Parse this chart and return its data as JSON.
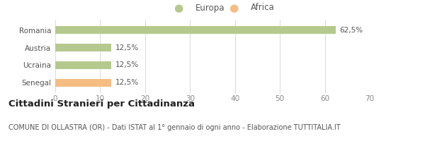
{
  "categories": [
    "Romania",
    "Austria",
    "Ucraina",
    "Senegal"
  ],
  "values": [
    62.5,
    12.5,
    12.5,
    12.5
  ],
  "bar_colors": [
    "#b5c98e",
    "#b5c98e",
    "#b5c98e",
    "#f5bd82"
  ],
  "value_labels": [
    "62,5%",
    "12,5%",
    "12,5%",
    "12,5%"
  ],
  "xlim": [
    0,
    70
  ],
  "xticks": [
    0,
    10,
    20,
    30,
    40,
    50,
    60,
    70
  ],
  "legend_items": [
    {
      "label": "Europa",
      "color": "#b5c98e"
    },
    {
      "label": "Africa",
      "color": "#f5bd82"
    }
  ],
  "title": "Cittadini Stranieri per Cittadinanza",
  "subtitle": "COMUNE DI OLLASTRA (OR) - Dati ISTAT al 1° gennaio di ogni anno - Elaborazione TUTTITALIA.IT",
  "background_color": "#ffffff",
  "grid_color": "#dddddd",
  "bar_height": 0.45,
  "title_fontsize": 9.5,
  "subtitle_fontsize": 7,
  "label_fontsize": 7.5,
  "tick_fontsize": 7.5,
  "legend_fontsize": 8.5
}
